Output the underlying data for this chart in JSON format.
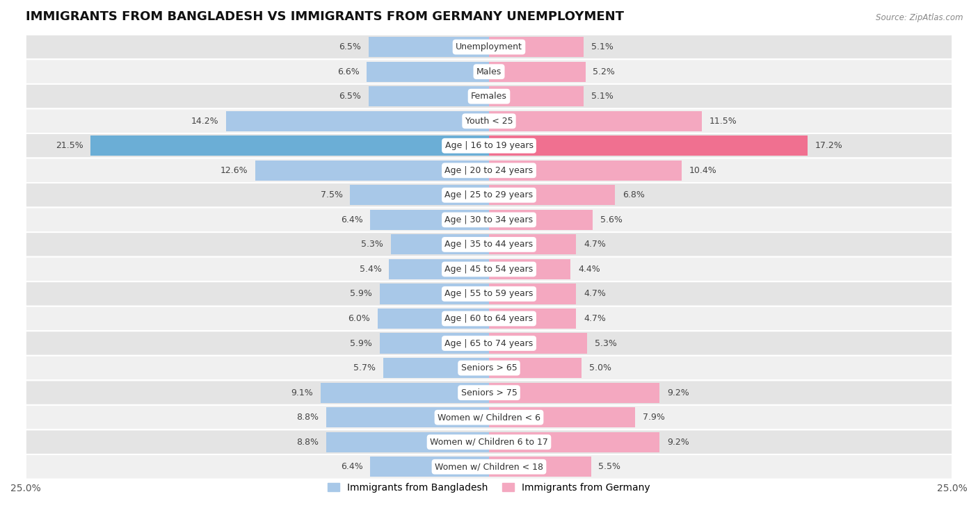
{
  "title": "IMMIGRANTS FROM BANGLADESH VS IMMIGRANTS FROM GERMANY UNEMPLOYMENT",
  "source": "Source: ZipAtlas.com",
  "categories": [
    "Unemployment",
    "Males",
    "Females",
    "Youth < 25",
    "Age | 16 to 19 years",
    "Age | 20 to 24 years",
    "Age | 25 to 29 years",
    "Age | 30 to 34 years",
    "Age | 35 to 44 years",
    "Age | 45 to 54 years",
    "Age | 55 to 59 years",
    "Age | 60 to 64 years",
    "Age | 65 to 74 years",
    "Seniors > 65",
    "Seniors > 75",
    "Women w/ Children < 6",
    "Women w/ Children 6 to 17",
    "Women w/ Children < 18"
  ],
  "bangladesh_values": [
    6.5,
    6.6,
    6.5,
    14.2,
    21.5,
    12.6,
    7.5,
    6.4,
    5.3,
    5.4,
    5.9,
    6.0,
    5.9,
    5.7,
    9.1,
    8.8,
    8.8,
    6.4
  ],
  "germany_values": [
    5.1,
    5.2,
    5.1,
    11.5,
    17.2,
    10.4,
    6.8,
    5.6,
    4.7,
    4.4,
    4.7,
    4.7,
    5.3,
    5.0,
    9.2,
    7.9,
    9.2,
    5.5
  ],
  "bangladesh_color": "#a8c8e8",
  "germany_color": "#f4a8c0",
  "bangladesh_highlight_color": "#6baed6",
  "germany_highlight_color": "#f07090",
  "highlight_row": 4,
  "xlim": 25.0,
  "row_color_odd": "#e4e4e4",
  "row_color_even": "#f0f0f0",
  "legend_bangladesh": "Immigrants from Bangladesh",
  "legend_germany": "Immigrants from Germany",
  "title_fontsize": 13,
  "label_fontsize": 9,
  "value_fontsize": 9
}
